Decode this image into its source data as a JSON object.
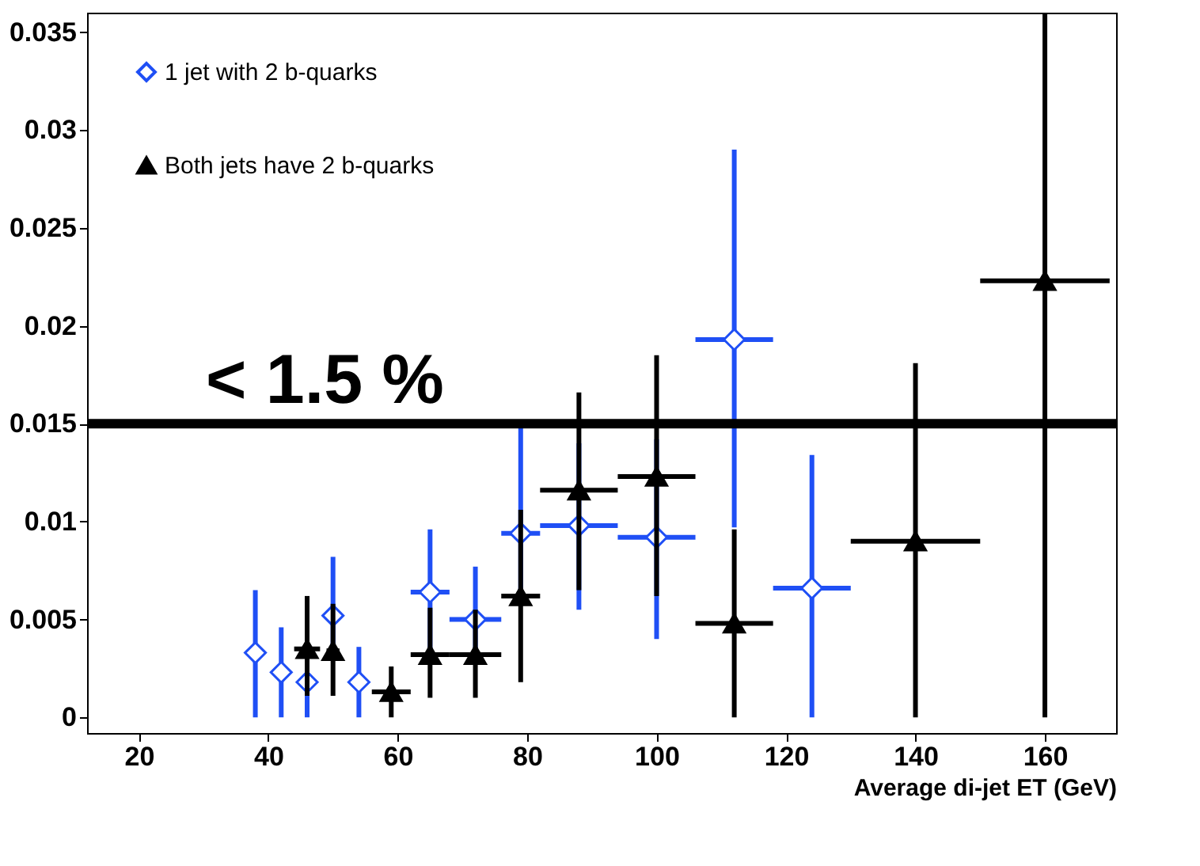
{
  "chart_data": {
    "type": "scatter",
    "xlabel": "Average di-jet ET (GeV)",
    "xlim": [
      12,
      171
    ],
    "xticks": [
      20,
      40,
      60,
      80,
      100,
      120,
      140,
      160
    ],
    "ylim": [
      -0.0008,
      0.036
    ],
    "yticks": [
      0,
      0.005,
      0.01,
      0.015,
      0.02,
      0.025,
      0.03,
      0.035
    ],
    "grid": false,
    "legend": "top left",
    "series": [
      {
        "name": "1 jet with 2 b-quarks",
        "color": "#1f4ff5",
        "marker": "diamond",
        "x": [
          38,
          42,
          46,
          50,
          54,
          65,
          72,
          79,
          88,
          100,
          112,
          124
        ],
        "values": [
          0.0033,
          0.0023,
          0.0018,
          0.0052,
          0.0018,
          0.0064,
          0.005,
          0.0094,
          0.0098,
          0.0092,
          0.0193,
          0.0066
        ],
        "errors": [
          [
            0,
            0.0065
          ],
          [
            0,
            0.0046
          ],
          [
            0,
            0.0037
          ],
          [
            0.0033,
            0.0082
          ],
          [
            0,
            0.0036
          ],
          [
            0.0033,
            0.0096
          ],
          [
            0.0032,
            0.0077
          ],
          [
            0.0063,
            0.0148
          ],
          [
            0.0055,
            0.014
          ],
          [
            0.004,
            0.0142
          ],
          [
            0.0097,
            0.029
          ],
          [
            0,
            0.0134
          ]
        ],
        "xerrors": [
          1,
          1,
          1,
          1,
          1,
          3,
          4,
          3,
          6,
          6,
          6,
          6
        ]
      },
      {
        "name": "Both jets have 2 b-quarks",
        "color": "#000000",
        "marker": "triangle",
        "x": [
          46,
          50,
          59,
          65,
          72,
          79,
          88,
          100,
          112,
          140,
          160
        ],
        "values": [
          0.0035,
          0.0034,
          0.0013,
          0.0032,
          0.0032,
          0.0062,
          0.0116,
          0.0123,
          0.0048,
          0.009,
          0.0223
        ],
        "errors": [
          [
            0.0011,
            0.0062
          ],
          [
            0.0011,
            0.0058
          ],
          [
            0,
            0.0026
          ],
          [
            0.001,
            0.0056
          ],
          [
            0.001,
            0.0055
          ],
          [
            0.0018,
            0.0106
          ],
          [
            0.0065,
            0.0166
          ],
          [
            0.0062,
            0.0185
          ],
          [
            0,
            0.0096
          ],
          [
            0,
            0.0181
          ],
          [
            0,
            0.036
          ]
        ],
        "xerrors": [
          2,
          1,
          3,
          3,
          4,
          3,
          6,
          6,
          6,
          10,
          10
        ]
      }
    ],
    "ref_lines": [
      {
        "axis": "y",
        "value": 0.015,
        "label": "< 1.5 %",
        "color": "#000000"
      }
    ]
  }
}
